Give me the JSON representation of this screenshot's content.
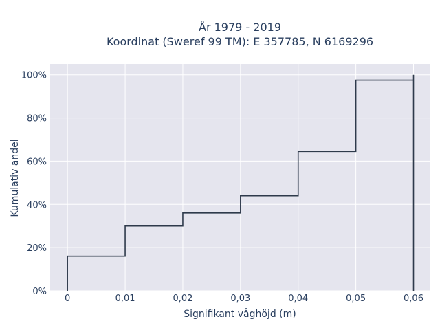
{
  "chart_data": {
    "type": "line",
    "line_shape": "step",
    "title": [
      "År 1979 - 2019",
      "Koordinat (Sweref 99 TM): E 357785, N 6169296"
    ],
    "xlabel": "Signifikant våghöjd (m)",
    "ylabel": "Kumulativ andel",
    "xlim": [
      -0.003,
      0.0628
    ],
    "ylim": [
      0,
      1.05
    ],
    "x_ticks": [
      0,
      0.01,
      0.02,
      0.03,
      0.04,
      0.05,
      0.06
    ],
    "x_tick_labels": [
      "0",
      "0,01",
      "0,02",
      "0,03",
      "0,04",
      "0,05",
      "0,06"
    ],
    "y_ticks": [
      0,
      0.2,
      0.4,
      0.6,
      0.8,
      1.0
    ],
    "y_tick_labels": [
      "0%",
      "20%",
      "40%",
      "60%",
      "80%",
      "100%"
    ],
    "grid": true,
    "background": "#e5e5ee",
    "line_color": "#2e3a4b",
    "series": [
      {
        "x": [
          0,
          0,
          0.01,
          0.01,
          0.02,
          0.02,
          0.03,
          0.03,
          0.04,
          0.04,
          0.05,
          0.05,
          0.06,
          0.06,
          0.06
        ],
        "y": [
          0,
          0.16,
          0.16,
          0.3,
          0.3,
          0.36,
          0.36,
          0.44,
          0.44,
          0.645,
          0.645,
          0.975,
          0.975,
          1.0,
          0
        ]
      }
    ]
  }
}
